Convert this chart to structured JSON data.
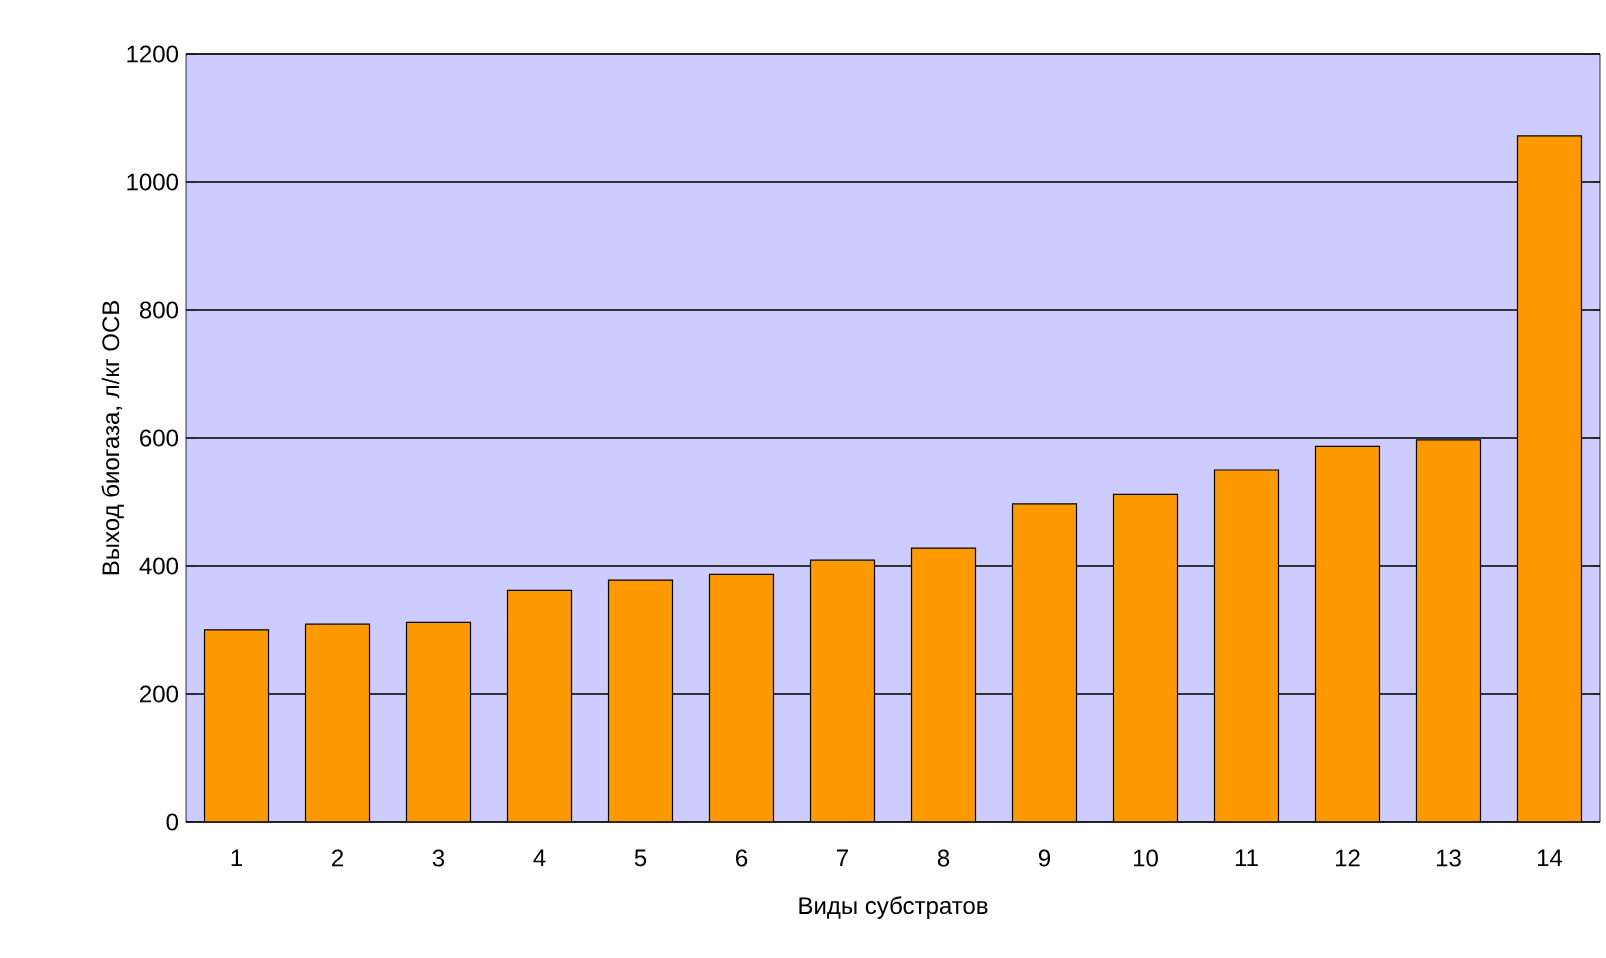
{
  "chart_data": {
    "type": "bar",
    "xlabel": "Виды субстратов",
    "ylabel": "Выход биогаза, л/кг ОСВ",
    "categories": [
      "1",
      "2",
      "3",
      "4",
      "5",
      "6",
      "7",
      "8",
      "9",
      "10",
      "11",
      "12",
      "13",
      "14"
    ],
    "values": [
      300,
      309,
      312,
      362,
      378,
      387,
      409,
      428,
      497,
      512,
      550,
      587,
      597,
      1072
    ],
    "color": "#ff9900",
    "ylim": [
      0,
      1200
    ],
    "yticks": [
      0,
      200,
      400,
      600,
      800,
      1000,
      1200
    ],
    "grid": "y"
  }
}
